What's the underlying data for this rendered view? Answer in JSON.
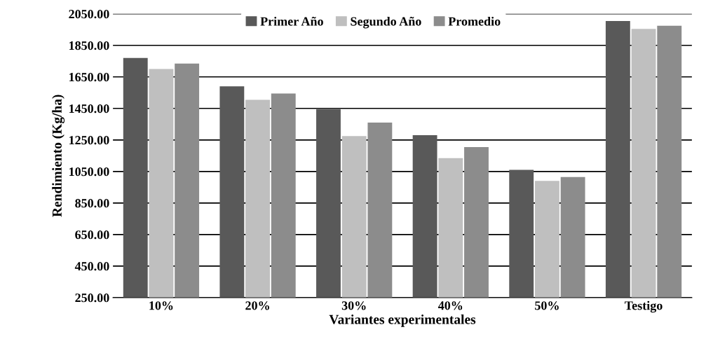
{
  "chart_data": {
    "type": "bar",
    "xlabel": "Variantes experimentales",
    "ylabel": "Rendimiento (Kg/ha)",
    "categories": [
      "10%",
      "20%",
      "30%",
      "40%",
      "50%",
      "Testigo"
    ],
    "series": [
      {
        "name": "Primer Año",
        "color": "#595959",
        "values": [
          1770,
          1590,
          1445,
          1280,
          1060,
          2005
        ]
      },
      {
        "name": "Segundo Año",
        "color": "#bfbfbf",
        "values": [
          1700,
          1505,
          1275,
          1135,
          990,
          1955
        ]
      },
      {
        "name": "Promedio",
        "color": "#8c8c8c",
        "values": [
          1735,
          1545,
          1360,
          1205,
          1015,
          1975
        ]
      }
    ],
    "ylim": [
      250,
      2050
    ],
    "yticks": [
      {
        "value": 250,
        "label": "250.00"
      },
      {
        "value": 450,
        "label": "450.00"
      },
      {
        "value": 650,
        "label": "650.00"
      },
      {
        "value": 850,
        "label": "850.00"
      },
      {
        "value": 1050,
        "label": "1050.00"
      },
      {
        "value": 1250,
        "label": "1250.00"
      },
      {
        "value": 1450,
        "label": "1450.00"
      },
      {
        "value": 1650,
        "label": "1650.00"
      },
      {
        "value": 1850,
        "label": "1850.00"
      },
      {
        "value": 2050,
        "label": "2050.00"
      }
    ],
    "grid": "y",
    "legend": "top"
  }
}
